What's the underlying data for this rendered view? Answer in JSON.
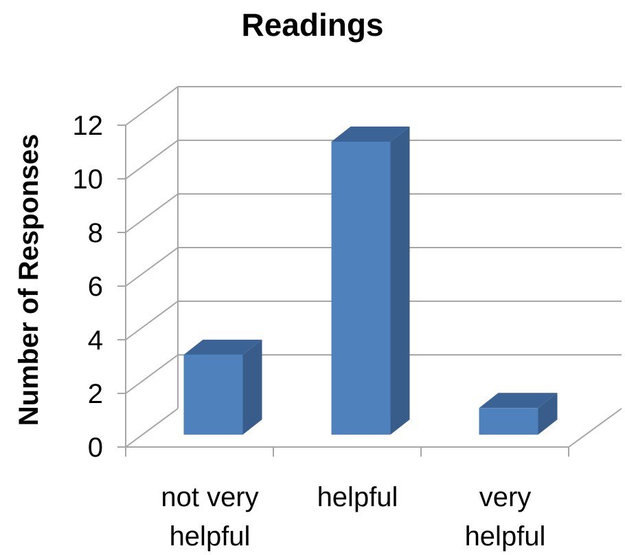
{
  "chart_data": {
    "type": "bar",
    "title": "Readings",
    "xlabel": "",
    "ylabel": "Number of Responses",
    "categories": [
      [
        "not very",
        "helpful"
      ],
      [
        "helpful"
      ],
      [
        "very",
        "helpful"
      ]
    ],
    "values": [
      3,
      11,
      1
    ],
    "ylim": [
      0,
      12
    ],
    "yticks": [
      0,
      2,
      4,
      6,
      8,
      10,
      12
    ],
    "grid": true,
    "legend": "none",
    "style": "3d",
    "colors": {
      "bar_front": "#4F81BD",
      "bar_side": "#385D8A",
      "bar_top": "#3B6396",
      "grid": "#A6A6A6"
    }
  }
}
